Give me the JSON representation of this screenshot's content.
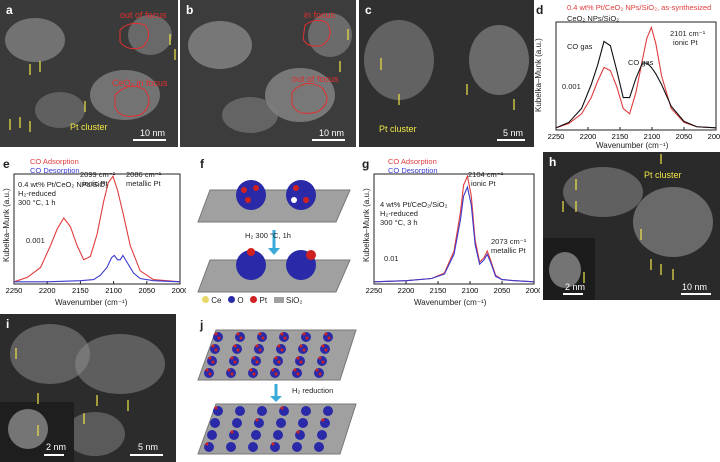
{
  "panels": {
    "a": {
      "label": "a",
      "ann_out": "out of focus",
      "ann_ceo2": "CeO₂ in focus",
      "ann_pt": "Pt cluster",
      "scale": "10 nm"
    },
    "b": {
      "label": "b",
      "ann_in": "in focus",
      "ann_out": "out of focus",
      "scale": "10 nm"
    },
    "c": {
      "label": "c",
      "ann_pt": "Pt cluster",
      "scale": "5 nm"
    },
    "d": {
      "label": "d",
      "legend": [
        "0.4 wt% Pt/CeO₂ NPs/SiO₂, as-synthesized",
        "CeO₂ NPs/SiO₂"
      ],
      "ann_co1": "CO gas",
      "ann_co2": "CO gas",
      "ann_peak": "2101 cm⁻¹",
      "ann_peak2": "ionic Pt",
      "scale": "0.001",
      "ylabel": "Kubelka–Munk (a.u.)",
      "xlabel": "Wavenumber (cm⁻¹)"
    },
    "e": {
      "label": "e",
      "legend": [
        "CO Adsorption",
        "CO Desorption"
      ],
      "sample": "0.4 wt% Pt/CeO₂ NPs/SiO₂",
      "cond1": "H₂-reduced",
      "cond2": "300 °C, 1 h",
      "ann1": "2099 cm⁻¹",
      "ann1b": "ionic Pt",
      "ann2": "2086 cm⁻¹",
      "ann2b": "metallic Pt",
      "scale": "0.001",
      "ylabel": "Kubelka–Munk (a.u.)",
      "xlabel": "Wavenumber (cm⁻¹)"
    },
    "f": {
      "label": "f",
      "step": "H₂ 300 °C, 1h",
      "leg_ce": "Ce",
      "leg_o": "O",
      "leg_pt": "Pt",
      "leg_sio2": "SiO₂"
    },
    "g": {
      "label": "g",
      "legend": [
        "CO Adsorption",
        "CO Desorption"
      ],
      "sample": "4 wt% Pt/CeO₂/SiO₂",
      "cond1": "H₂-reduced",
      "cond2": "300 °C, 3 h",
      "ann1": "2104 cm⁻¹",
      "ann1b": "ionic Pt",
      "ann2": "2073 cm⁻¹",
      "ann2b": "metallic Pt",
      "scale": "0.01",
      "ylabel": "Kubelka–Munk (a.u.)",
      "xlabel": "Wavenumber (cm⁻¹)"
    },
    "h": {
      "label": "h",
      "ann_pt": "Pt cluster",
      "scale": "10 nm",
      "inset_scale": "2 nm"
    },
    "i": {
      "label": "i",
      "scale": "5 nm",
      "inset_scale": "2 nm"
    },
    "j": {
      "label": "j",
      "step": "H₂ reduction"
    }
  },
  "chart_data": [
    {
      "panel": "d",
      "type": "line",
      "x_ticks": [
        2250,
        2200,
        2150,
        2100,
        2050,
        2000
      ],
      "xlim": [
        2250,
        2000
      ],
      "series": [
        {
          "name": "0.4 wt% Pt/CeO₂ NPs/SiO₂, as-synthesized",
          "color": "#e03c3c",
          "x": [
            2250,
            2230,
            2210,
            2195,
            2185,
            2175,
            2165,
            2155,
            2145,
            2135,
            2125,
            2115,
            2108,
            2101,
            2094,
            2085,
            2070,
            2050,
            2030,
            2000
          ],
          "y": [
            0.02,
            0.06,
            0.15,
            0.3,
            0.45,
            0.58,
            0.55,
            0.4,
            0.2,
            0.15,
            0.35,
            0.65,
            0.85,
            0.95,
            0.8,
            0.5,
            0.2,
            0.07,
            0.03,
            0.02
          ]
        },
        {
          "name": "CeO₂ NPs/SiO₂",
          "color": "#111111",
          "x": [
            2250,
            2230,
            2210,
            2195,
            2185,
            2175,
            2165,
            2155,
            2145,
            2135,
            2125,
            2115,
            2108,
            2101,
            2094,
            2085,
            2070,
            2050,
            2030,
            2000
          ],
          "y": [
            0.02,
            0.07,
            0.2,
            0.42,
            0.6,
            0.82,
            0.78,
            0.55,
            0.3,
            0.3,
            0.48,
            0.62,
            0.62,
            0.58,
            0.52,
            0.42,
            0.22,
            0.08,
            0.03,
            0.02
          ]
        }
      ]
    },
    {
      "panel": "e",
      "type": "line",
      "x_ticks": [
        2250,
        2200,
        2150,
        2100,
        2050,
        2000
      ],
      "xlim": [
        2250,
        2000
      ],
      "series": [
        {
          "name": "CO Adsorption",
          "color": "#e03c3c",
          "x": [
            2250,
            2230,
            2210,
            2195,
            2185,
            2175,
            2165,
            2155,
            2145,
            2135,
            2125,
            2115,
            2108,
            2101,
            2094,
            2086,
            2075,
            2060,
            2040,
            2000
          ],
          "y": [
            0.02,
            0.06,
            0.15,
            0.35,
            0.5,
            0.6,
            0.52,
            0.35,
            0.22,
            0.25,
            0.45,
            0.75,
            0.92,
            0.98,
            0.85,
            0.65,
            0.35,
            0.12,
            0.04,
            0.02
          ]
        },
        {
          "name": "CO Desorption",
          "color": "#3a3ad0",
          "x": [
            2250,
            2200,
            2150,
            2130,
            2120,
            2110,
            2103,
            2099,
            2094,
            2090,
            2086,
            2080,
            2070,
            2060,
            2040,
            2000
          ],
          "y": [
            0.02,
            0.02,
            0.03,
            0.04,
            0.08,
            0.15,
            0.24,
            0.26,
            0.22,
            0.22,
            0.26,
            0.2,
            0.1,
            0.05,
            0.03,
            0.02
          ]
        }
      ]
    },
    {
      "panel": "g",
      "type": "line",
      "x_ticks": [
        2250,
        2200,
        2150,
        2100,
        2050,
        2000
      ],
      "xlim": [
        2250,
        2000
      ],
      "series": [
        {
          "name": "CO Adsorption",
          "color": "#e03c3c",
          "x": [
            2250,
            2200,
            2160,
            2140,
            2125,
            2115,
            2110,
            2104,
            2098,
            2092,
            2085,
            2078,
            2073,
            2068,
            2060,
            2050,
            2030,
            2000
          ],
          "y": [
            0.02,
            0.03,
            0.05,
            0.1,
            0.3,
            0.65,
            0.9,
            0.98,
            0.8,
            0.4,
            0.2,
            0.24,
            0.3,
            0.22,
            0.08,
            0.04,
            0.03,
            0.02
          ]
        },
        {
          "name": "CO Desorption",
          "color": "#3a3ad0",
          "x": [
            2250,
            2200,
            2160,
            2140,
            2125,
            2115,
            2110,
            2104,
            2098,
            2092,
            2085,
            2078,
            2073,
            2068,
            2060,
            2050,
            2030,
            2000
          ],
          "y": [
            0.02,
            0.03,
            0.05,
            0.09,
            0.27,
            0.58,
            0.8,
            0.88,
            0.72,
            0.36,
            0.18,
            0.22,
            0.27,
            0.2,
            0.07,
            0.04,
            0.03,
            0.02
          ]
        }
      ]
    }
  ]
}
